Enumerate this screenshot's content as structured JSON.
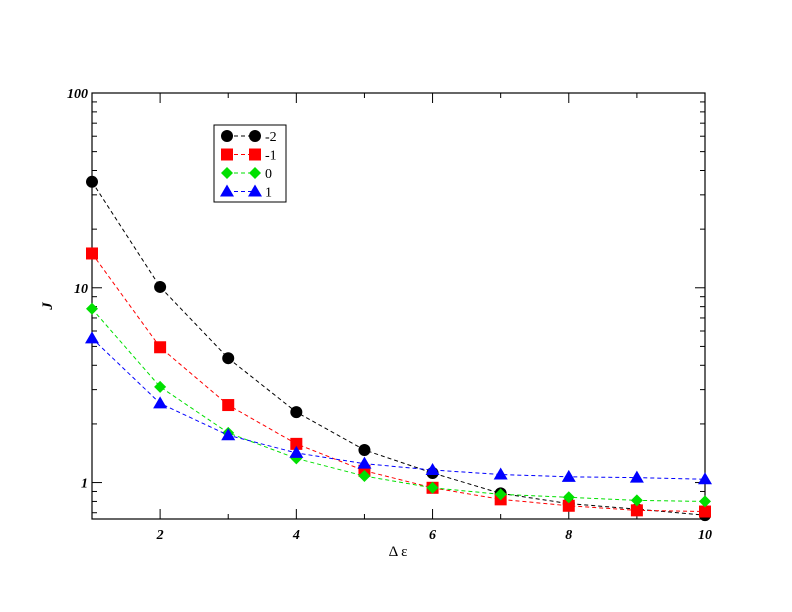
{
  "chart_data": {
    "type": "line",
    "title": "",
    "xlabel": "Δ ε",
    "ylabel": "J",
    "xlim": [
      1,
      10
    ],
    "ylim": [
      0.65,
      100
    ],
    "yscale": "log",
    "grid": false,
    "legend_position": "top-left",
    "x_ticks": [
      "2",
      "4",
      "6",
      "8",
      "10"
    ],
    "y_ticks": [
      "1",
      "10",
      "100"
    ],
    "x": [
      1,
      2,
      3,
      4,
      5,
      6,
      7,
      8,
      9,
      10
    ],
    "series": [
      {
        "name": "-2",
        "color": "#000000",
        "marker": "circle",
        "values": [
          35,
          10.1,
          4.35,
          2.3,
          1.47,
          1.12,
          0.88,
          0.78,
          0.73,
          0.68
        ]
      },
      {
        "name": "-1",
        "color": "#ff0000",
        "marker": "square",
        "values": [
          15,
          4.95,
          2.5,
          1.58,
          1.15,
          0.94,
          0.82,
          0.76,
          0.72,
          0.71
        ]
      },
      {
        "name": "0",
        "color": "#00e000",
        "marker": "diamond",
        "values": [
          7.8,
          3.1,
          1.8,
          1.33,
          1.08,
          0.94,
          0.87,
          0.84,
          0.81,
          0.8
        ]
      },
      {
        "name": "1",
        "color": "#0000ff",
        "marker": "triangle",
        "values": [
          5.5,
          2.55,
          1.75,
          1.42,
          1.25,
          1.16,
          1.1,
          1.07,
          1.06,
          1.04
        ]
      }
    ]
  }
}
